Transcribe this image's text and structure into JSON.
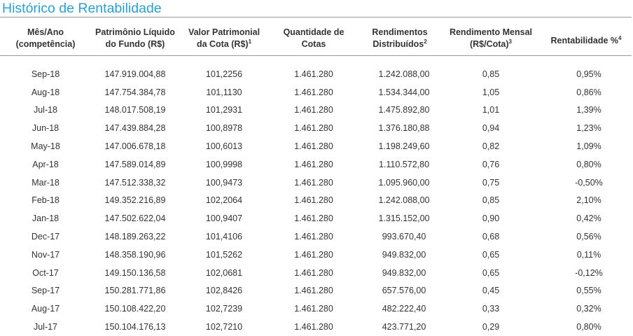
{
  "title": "Histórico de Rentabilidade",
  "headers": [
    {
      "line1": "Mês/Ano",
      "line2": "(competência)",
      "sup": ""
    },
    {
      "line1": "Patrimônio Líquido",
      "line2": "do Fundo (R$)",
      "sup": ""
    },
    {
      "line1": "Valor Patrimonial",
      "line2": "da Cota (R$)",
      "sup": "1"
    },
    {
      "line1": "Quantidade de",
      "line2": "Cotas",
      "sup": ""
    },
    {
      "line1": "Rendimentos",
      "line2": "Distribuídos",
      "sup": "2"
    },
    {
      "line1": "Rendimento Mensal",
      "line2": "(R$/Cota)",
      "sup": "3"
    },
    {
      "line1": "Rentabilidade %",
      "line2": "",
      "sup": "4"
    }
  ],
  "rows": [
    [
      "Sep-18",
      "147.919.004,88",
      "101,2256",
      "1.461.280",
      "1.242.088,00",
      "0,85",
      "0,95%"
    ],
    [
      "Aug-18",
      "147.754.384,78",
      "101,1130",
      "1.461.280",
      "1.534.344,00",
      "1,05",
      "0,86%"
    ],
    [
      "Jul-18",
      "148.017.508,19",
      "101,2931",
      "1.461.280",
      "1.475.892,80",
      "1,01",
      "1,39%"
    ],
    [
      "Jun-18",
      "147.439.884,28",
      "100,8978",
      "1.461.280",
      "1.376.180,88",
      "0,94",
      "1,23%"
    ],
    [
      "May-18",
      "147.006.678,18",
      "100,6013",
      "1.461.280",
      "1.198.249,60",
      "0,82",
      "1,09%"
    ],
    [
      "Apr-18",
      "147.589.014,89",
      "100,9998",
      "1.461.280",
      "1.110.572,80",
      "0,76",
      "0,80%"
    ],
    [
      "Mar-18",
      "147.512.338,32",
      "100,9473",
      "1.461.280",
      "1.095.960,00",
      "0,75",
      "-0,50%"
    ],
    [
      "Feb-18",
      "149.352.216,89",
      "102,2064",
      "1.461.280",
      "1.242.088,00",
      "0,85",
      "2,10%"
    ],
    [
      "Jan-18",
      "147.502.622,04",
      "100,9407",
      "1.461.280",
      "1.315.152,00",
      "0,90",
      "0,42%"
    ],
    [
      "Dec-17",
      "148.189.263,22",
      "101,4106",
      "1.461.280",
      "993.670,40",
      "0,68",
      "0,56%"
    ],
    [
      "Nov-17",
      "148.358.190,96",
      "101,5262",
      "1.461.280",
      "949.832,00",
      "0,65",
      "0,11%"
    ],
    [
      "Oct-17",
      "149.150.136,58",
      "102,0681",
      "1.461.280",
      "949.832,00",
      "0,65",
      "-0,12%"
    ],
    [
      "Sep-17",
      "150.281.771,86",
      "102,8426",
      "1.461.280",
      "657.576,00",
      "0,45",
      "0,55%"
    ],
    [
      "Aug-17",
      "150.108.422,20",
      "102,7239",
      "1.461.280",
      "482.222,40",
      "0,33",
      "0,32%"
    ],
    [
      "Jul-17",
      "150.104.176,13",
      "102,7210",
      "1.461.280",
      "423.771,20",
      "0,29",
      "0,80%"
    ]
  ]
}
